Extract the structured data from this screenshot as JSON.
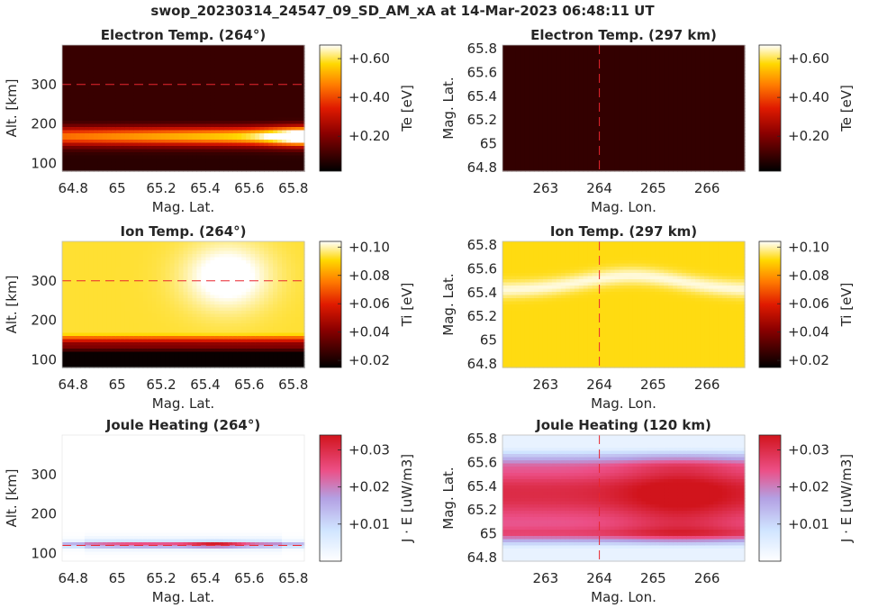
{
  "figure": {
    "title": "swop_20230314_24547_09_SD_AM_xA at 14-Mar-2023 06:48:11 UT"
  },
  "chart_data": [
    {
      "type": "heatmap",
      "title": "Electron Temp. (264°)",
      "xlabel": "Mag. Lat.",
      "ylabel": "Alt. [km]",
      "xlim": [
        64.75,
        65.85
      ],
      "ylim": [
        80,
        400
      ],
      "xticks": [
        "64.8",
        "65",
        "65.2",
        "65.4",
        "65.6",
        "65.8"
      ],
      "yticks": [
        "100",
        "200",
        "300"
      ],
      "reference_line": {
        "axis": "y",
        "value": 300
      },
      "colormap": "hot",
      "colorbar": {
        "label": "Te [eV]",
        "range": [
          0.02,
          0.67
        ],
        "ticks": [
          "+0.20",
          "+0.40",
          "+0.60"
        ]
      },
      "features": [
        {
          "description": "hot band",
          "y_center": 170,
          "y_width": 25,
          "peak": 0.6,
          "x_peak": 65.85
        }
      ]
    },
    {
      "type": "heatmap",
      "title": "Electron Temp. (297 km)",
      "xlabel": "Mag. Lon.",
      "ylabel": "Mag. Lat.",
      "xlim": [
        262.2,
        266.7
      ],
      "ylim": [
        64.77,
        65.83
      ],
      "xticks": [
        "263",
        "264",
        "265",
        "266"
      ],
      "yticks": [
        "64.8",
        "65",
        "65.2",
        "65.4",
        "65.6",
        "65.8"
      ],
      "reference_line": {
        "axis": "x",
        "value": 264
      },
      "colormap": "hot",
      "colorbar": {
        "label": "Te [eV]",
        "range": [
          0.02,
          0.67
        ],
        "ticks": [
          "+0.20",
          "+0.40",
          "+0.60"
        ]
      },
      "uniform_value": 0.05
    },
    {
      "type": "heatmap",
      "title": "Ion Temp. (264°)",
      "xlabel": "Mag. Lat.",
      "ylabel": "Alt. [km]",
      "xlim": [
        64.75,
        65.85
      ],
      "ylim": [
        80,
        400
      ],
      "xticks": [
        "64.8",
        "65",
        "65.2",
        "65.4",
        "65.6",
        "65.8"
      ],
      "yticks": [
        "100",
        "200",
        "300"
      ],
      "reference_line": {
        "axis": "y",
        "value": 300
      },
      "colormap": "hot",
      "colorbar": {
        "label": "Ti [eV]",
        "range": [
          0.015,
          0.104
        ],
        "ticks": [
          "+0.02",
          "+0.04",
          "+0.06",
          "+0.08",
          "+0.10"
        ]
      },
      "features": [
        {
          "description": "cold bottom layer below ~140 km",
          "value_low": 0.015
        },
        {
          "description": "warm region aloft",
          "value_high": 0.09,
          "x_peak": 65.5,
          "y_peak": 300
        }
      ]
    },
    {
      "type": "heatmap",
      "title": "Ion Temp. (297 km)",
      "xlabel": "Mag. Lon.",
      "ylabel": "Mag. Lat.",
      "xlim": [
        262.2,
        266.7
      ],
      "ylim": [
        64.77,
        65.83
      ],
      "xticks": [
        "263",
        "264",
        "265",
        "266"
      ],
      "yticks": [
        "64.8",
        "65",
        "65.2",
        "65.4",
        "65.6",
        "65.8"
      ],
      "reference_line": {
        "axis": "x",
        "value": 264
      },
      "colormap": "hot",
      "colorbar": {
        "label": "Ti [eV]",
        "range": [
          0.015,
          0.104
        ],
        "ticks": [
          "+0.02",
          "+0.04",
          "+0.06",
          "+0.08",
          "+0.10"
        ]
      },
      "features": [
        {
          "description": "bright arc",
          "y_center": 65.45,
          "peak_lon": 264.5,
          "value": 0.1
        }
      ]
    },
    {
      "type": "heatmap",
      "title": "Joule Heating (264°)",
      "xlabel": "Mag. Lat.",
      "ylabel": "Alt. [km]",
      "xlim": [
        64.75,
        65.85
      ],
      "ylim": [
        80,
        400
      ],
      "xticks": [
        "64.8",
        "65",
        "65.2",
        "65.4",
        "65.6",
        "65.8"
      ],
      "yticks": [
        "100",
        "200",
        "300"
      ],
      "reference_line": {
        "axis": "y",
        "value": 120
      },
      "colormap": "white-blue-red",
      "colorbar": {
        "label": "J · E [uW/m3]",
        "range": [
          0,
          0.034
        ],
        "ticks": [
          "+0.01",
          "+0.02",
          "+0.03"
        ]
      },
      "features": [
        {
          "description": "thin heating layer",
          "y_center": 123,
          "peak": 0.03,
          "x_peak": 65.45
        }
      ]
    },
    {
      "type": "heatmap",
      "title": "Joule Heating (120 km)",
      "xlabel": "Mag. Lon.",
      "ylabel": "Mag. Lat.",
      "xlim": [
        262.2,
        266.7
      ],
      "ylim": [
        64.77,
        65.83
      ],
      "xticks": [
        "263",
        "264",
        "265",
        "266"
      ],
      "yticks": [
        "64.8",
        "65",
        "65.2",
        "65.4",
        "65.6",
        "65.8"
      ],
      "reference_line": {
        "axis": "x",
        "value": 264
      },
      "colormap": "white-blue-red",
      "colorbar": {
        "label": "J · E [uW/m3]",
        "range": [
          0,
          0.034
        ],
        "ticks": [
          "+0.01",
          "+0.02",
          "+0.03"
        ]
      },
      "features": [
        {
          "description": "broad heating band",
          "y_range": [
            64.95,
            65.55
          ],
          "peak": 0.032,
          "peak_lon": 265.5
        }
      ]
    }
  ]
}
